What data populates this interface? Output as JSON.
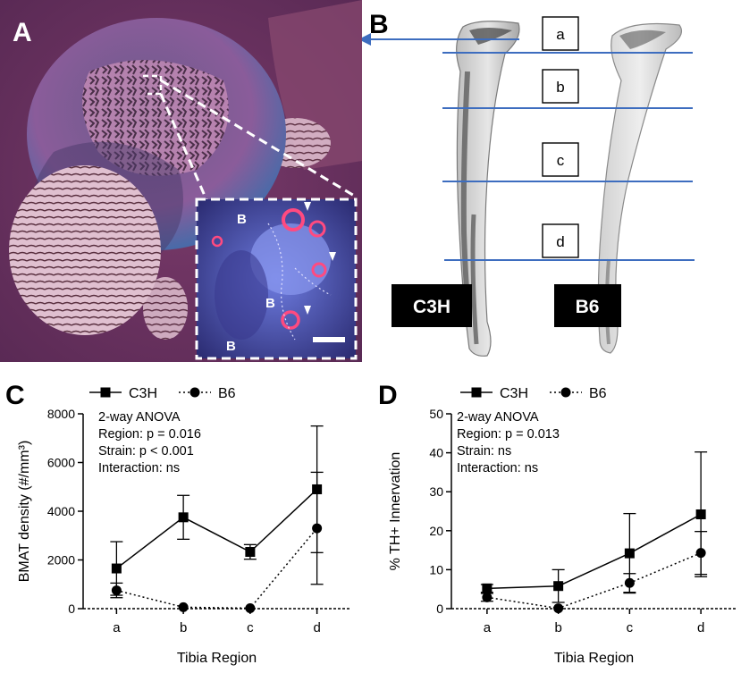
{
  "figure": {
    "panels": {
      "A": {
        "letter": "A",
        "inset_labels": [
          "B",
          "B",
          "B"
        ]
      },
      "B": {
        "letter": "B",
        "region_labels": [
          "a",
          "b",
          "c",
          "d"
        ],
        "strain_labels": [
          "C3H",
          "B6"
        ]
      },
      "C": {
        "letter": "C"
      },
      "D": {
        "letter": "D"
      }
    },
    "colors": {
      "guide_line": "#3d6dbf",
      "label_box_bg": "#000000",
      "label_box_text": "#ffffff"
    }
  },
  "chart_data": [
    {
      "panel": "C",
      "type": "line",
      "xlabel": "Tibia Region",
      "ylabel": "BMAT density (#/mm³)",
      "categories": [
        "a",
        "b",
        "c",
        "d"
      ],
      "ylim": [
        0,
        8000
      ],
      "yticks": [
        0,
        2000,
        4000,
        6000,
        8000
      ],
      "legend_position": "top",
      "stats_text": [
        "2-way ANOVA",
        "Region: p = 0.016",
        "Strain: p < 0.001",
        "Interaction: ns"
      ],
      "series": [
        {
          "name": "C3H",
          "marker": "square",
          "line": "solid",
          "values": [
            1650,
            3750,
            2330,
            4900
          ],
          "err_low": [
            1100,
            900,
            300,
            2600
          ],
          "err_high": [
            1100,
            900,
            300,
            2600
          ]
        },
        {
          "name": "B6",
          "marker": "circle",
          "line": "dotted",
          "values": [
            750,
            60,
            20,
            3300
          ],
          "err_low": [
            300,
            0,
            0,
            2300
          ],
          "err_high": [
            300,
            0,
            0,
            2300
          ]
        }
      ]
    },
    {
      "panel": "D",
      "type": "line",
      "xlabel": "Tibia Region",
      "ylabel": "% TH+ Innervation",
      "categories": [
        "a",
        "b",
        "c",
        "d"
      ],
      "ylim": [
        0,
        50
      ],
      "yticks": [
        0,
        10,
        20,
        30,
        40,
        50
      ],
      "legend_position": "top",
      "stats_text": [
        "2-way ANOVA",
        "Region: p = 0.013",
        "Strain: ns",
        "Interaction: ns"
      ],
      "series": [
        {
          "name": "C3H",
          "marker": "square",
          "line": "solid",
          "values": [
            5.2,
            5.8,
            14.2,
            24.2
          ],
          "err_low": [
            1.0,
            4.2,
            10.2,
            16.0
          ],
          "err_high": [
            1.0,
            4.2,
            10.2,
            16.0
          ]
        },
        {
          "name": "B6",
          "marker": "circle",
          "line": "dotted",
          "values": [
            2.9,
            0.1,
            6.6,
            14.3
          ],
          "err_low": [
            1.0,
            0,
            2.4,
            5.5
          ],
          "err_high": [
            1.0,
            0,
            2.4,
            5.5
          ]
        }
      ]
    }
  ]
}
